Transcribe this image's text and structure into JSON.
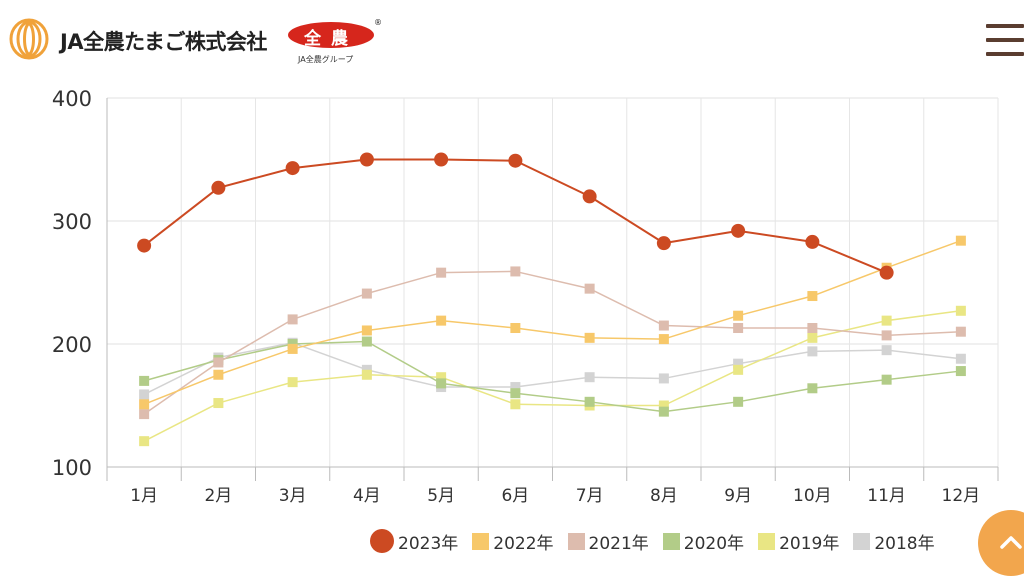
{
  "header": {
    "company_name": "JA全農たまご株式会社",
    "zennoh_logo_text": "全農",
    "zennoh_registered": "®",
    "zennoh_subtext": "JA全農グループ"
  },
  "colors": {
    "2023": "#cc4a22",
    "2022": "#f7c86a",
    "2021": "#ddbcae",
    "2020": "#b2cc88",
    "2019": "#e9e684",
    "2018": "#d3d3d3",
    "scroll_button": "#f2a64d",
    "menu_icon": "#5a3d30"
  },
  "icons": {
    "menu": "hamburger-icon",
    "scroll_top": "chevron-up-icon",
    "logo": "egg-rings-icon"
  },
  "chart_data": {
    "type": "line",
    "categories": [
      "1月",
      "2月",
      "3月",
      "4月",
      "5月",
      "6月",
      "7月",
      "8月",
      "9月",
      "10月",
      "11月",
      "12月"
    ],
    "ylim": [
      100,
      400
    ],
    "yticks": [
      100,
      200,
      300,
      400
    ],
    "grid": true,
    "legend_position": "bottom-right",
    "series": [
      {
        "name": "2023年",
        "key": "2023",
        "marker": "circle",
        "values": [
          280,
          327,
          343,
          350,
          350,
          349,
          320,
          282,
          292,
          283,
          258,
          null
        ]
      },
      {
        "name": "2022年",
        "key": "2022",
        "marker": "square",
        "values": [
          151,
          175,
          196,
          211,
          219,
          213,
          205,
          204,
          223,
          239,
          262,
          284
        ]
      },
      {
        "name": "2021年",
        "key": "2021",
        "marker": "square",
        "values": [
          143,
          185,
          220,
          241,
          258,
          259,
          245,
          215,
          213,
          213,
          207,
          210
        ]
      },
      {
        "name": "2020年",
        "key": "2020",
        "marker": "square",
        "values": [
          170,
          187,
          200,
          202,
          168,
          160,
          153,
          145,
          153,
          164,
          171,
          178
        ]
      },
      {
        "name": "2019年",
        "key": "2019",
        "marker": "square",
        "values": [
          121,
          152,
          169,
          175,
          173,
          151,
          150,
          150,
          179,
          205,
          219,
          227
        ]
      },
      {
        "name": "2018年",
        "key": "2018",
        "marker": "square",
        "values": [
          159,
          189,
          201,
          179,
          165,
          165,
          173,
          172,
          184,
          194,
          195,
          188
        ]
      }
    ]
  }
}
